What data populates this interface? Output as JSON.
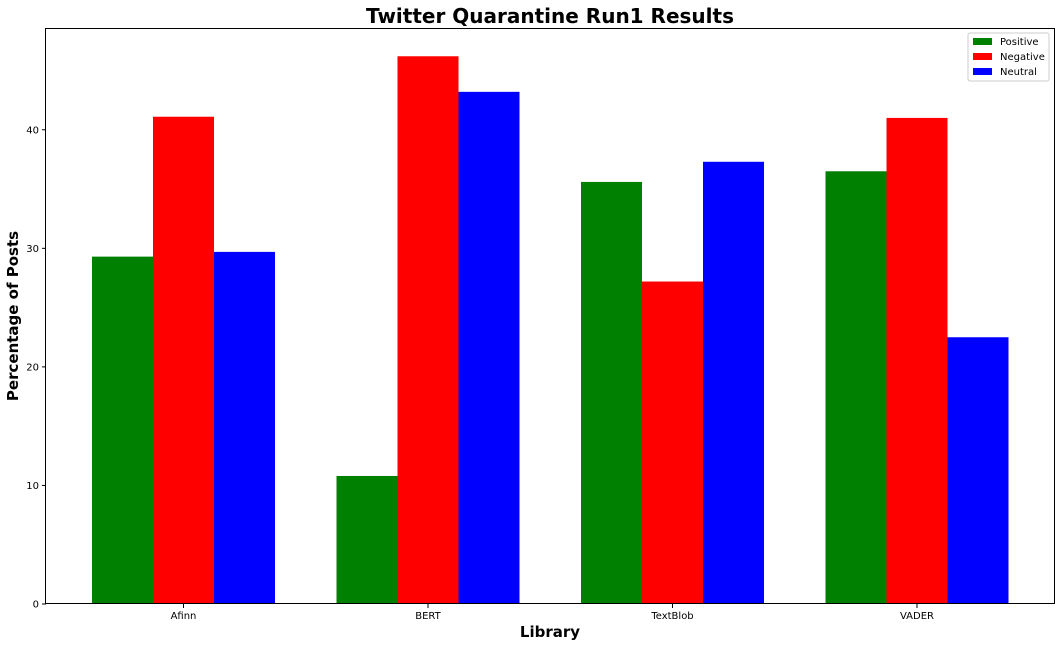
{
  "chart_data": {
    "type": "bar",
    "title": "Twitter Quarantine Run1 Results",
    "xlabel": "Library",
    "ylabel": "Percentage of Posts",
    "categories": [
      "Afinn",
      "BERT",
      "TextBlob",
      "VADER"
    ],
    "series": [
      {
        "name": "Positive",
        "color": "#008000",
        "values": [
          29.3,
          10.8,
          35.6,
          36.5
        ]
      },
      {
        "name": "Negative",
        "color": "#ff0000",
        "values": [
          41.1,
          46.2,
          27.2,
          41.0
        ]
      },
      {
        "name": "Neutral",
        "color": "#0000ff",
        "values": [
          29.7,
          43.2,
          37.3,
          22.5
        ]
      }
    ],
    "yticks": [
      0,
      10,
      20,
      30,
      40
    ],
    "ylim": [
      0,
      48.5
    ],
    "grid": false,
    "legend": "top-right"
  }
}
